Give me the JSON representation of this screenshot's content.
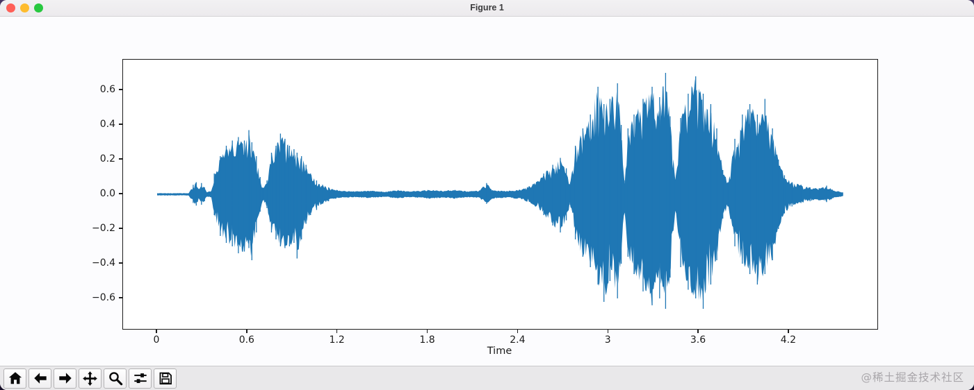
{
  "window": {
    "title": "Figure 1",
    "traffic_lights": {
      "close": "#ff5f57",
      "minimize": "#febc2e",
      "zoom": "#28c840"
    }
  },
  "watermark": {
    "text": "@稀土掘金技术社区",
    "color": "#a9a6aa"
  },
  "toolbar": {
    "buttons": [
      {
        "name": "home"
      },
      {
        "name": "back"
      },
      {
        "name": "forward"
      },
      {
        "name": "pan"
      },
      {
        "name": "zoom-to-rect"
      },
      {
        "name": "configure-subplots"
      },
      {
        "name": "save"
      }
    ]
  },
  "chart_data": {
    "type": "line",
    "title": "",
    "xlabel": "Time",
    "ylabel": "",
    "line_color": "#1f77b4",
    "grid": false,
    "legend": null,
    "xlim": [
      -0.23,
      4.79
    ],
    "ylim": [
      -0.776,
      0.776
    ],
    "xticks": [
      {
        "label": "0",
        "value": 0.0
      },
      {
        "label": "0.6",
        "value": 0.6
      },
      {
        "label": "1.2",
        "value": 1.2
      },
      {
        "label": "1.8",
        "value": 1.8
      },
      {
        "label": "2.4",
        "value": 2.4
      },
      {
        "label": "3",
        "value": 3.0
      },
      {
        "label": "3.6",
        "value": 3.6
      },
      {
        "label": "4.2",
        "value": 4.2
      }
    ],
    "yticks": [
      {
        "label": "0.6",
        "value": 0.6
      },
      {
        "label": "0.4",
        "value": 0.4
      },
      {
        "label": "0.2",
        "value": 0.2
      },
      {
        "label": "0.0",
        "value": 0.0
      },
      {
        "label": "−0.2",
        "value": -0.2
      },
      {
        "label": "−0.4",
        "value": -0.4
      },
      {
        "label": "−0.6",
        "value": -0.6
      }
    ],
    "series_name": "audio waveform amplitude vs time (s)",
    "envelope_format": [
      "time_s",
      "min_amplitude",
      "max_amplitude"
    ],
    "envelope": [
      [
        0.0,
        -0.007,
        0.007
      ],
      [
        0.21,
        -0.007,
        0.007
      ],
      [
        0.24,
        -0.05,
        0.055
      ],
      [
        0.26,
        -0.065,
        0.07
      ],
      [
        0.28,
        -0.03,
        0.03
      ],
      [
        0.295,
        -0.06,
        0.065
      ],
      [
        0.315,
        -0.04,
        0.04
      ],
      [
        0.33,
        -0.015,
        0.015
      ],
      [
        0.36,
        -0.02,
        0.02
      ],
      [
        0.38,
        -0.12,
        0.12
      ],
      [
        0.42,
        -0.24,
        0.22
      ],
      [
        0.46,
        -0.28,
        0.28
      ],
      [
        0.5,
        -0.3,
        0.31
      ],
      [
        0.54,
        -0.34,
        0.33
      ],
      [
        0.58,
        -0.33,
        0.31
      ],
      [
        0.61,
        -0.31,
        0.37
      ],
      [
        0.63,
        -0.38,
        0.3
      ],
      [
        0.66,
        -0.22,
        0.22
      ],
      [
        0.685,
        -0.1,
        0.1
      ],
      [
        0.705,
        -0.035,
        0.035
      ],
      [
        0.73,
        -0.08,
        0.08
      ],
      [
        0.76,
        -0.22,
        0.24
      ],
      [
        0.79,
        -0.26,
        0.28
      ],
      [
        0.82,
        -0.3,
        0.35
      ],
      [
        0.85,
        -0.31,
        0.32
      ],
      [
        0.88,
        -0.3,
        0.28
      ],
      [
        0.91,
        -0.28,
        0.26
      ],
      [
        0.93,
        -0.37,
        0.24
      ],
      [
        0.96,
        -0.26,
        0.22
      ],
      [
        0.99,
        -0.17,
        0.17
      ],
      [
        1.02,
        -0.12,
        0.12
      ],
      [
        1.06,
        -0.09,
        0.08
      ],
      [
        1.1,
        -0.055,
        0.055
      ],
      [
        1.14,
        -0.04,
        0.04
      ],
      [
        1.18,
        -0.028,
        0.028
      ],
      [
        1.24,
        -0.02,
        0.02
      ],
      [
        1.32,
        -0.018,
        0.018
      ],
      [
        1.42,
        -0.022,
        0.022
      ],
      [
        1.52,
        -0.016,
        0.016
      ],
      [
        1.6,
        -0.026,
        0.026
      ],
      [
        1.66,
        -0.018,
        0.018
      ],
      [
        1.74,
        -0.02,
        0.02
      ],
      [
        1.82,
        -0.028,
        0.028
      ],
      [
        1.9,
        -0.02,
        0.02
      ],
      [
        1.98,
        -0.026,
        0.028
      ],
      [
        2.06,
        -0.018,
        0.018
      ],
      [
        2.14,
        -0.022,
        0.022
      ],
      [
        2.19,
        -0.055,
        0.065
      ],
      [
        2.23,
        -0.025,
        0.025
      ],
      [
        2.32,
        -0.02,
        0.02
      ],
      [
        2.42,
        -0.028,
        0.028
      ],
      [
        2.5,
        -0.06,
        0.06
      ],
      [
        2.57,
        -0.12,
        0.12
      ],
      [
        2.63,
        -0.18,
        0.17
      ],
      [
        2.68,
        -0.22,
        0.21
      ],
      [
        2.72,
        -0.15,
        0.15
      ],
      [
        2.745,
        -0.06,
        0.06
      ],
      [
        2.78,
        -0.26,
        0.28
      ],
      [
        2.83,
        -0.36,
        0.38
      ],
      [
        2.88,
        -0.42,
        0.46
      ],
      [
        2.93,
        -0.52,
        0.62
      ],
      [
        2.97,
        -0.62,
        0.52
      ],
      [
        3.01,
        -0.5,
        0.55
      ],
      [
        3.06,
        -0.6,
        0.64
      ],
      [
        3.085,
        -0.4,
        0.4
      ],
      [
        3.105,
        -0.08,
        0.08
      ],
      [
        3.13,
        -0.36,
        0.38
      ],
      [
        3.17,
        -0.46,
        0.46
      ],
      [
        3.23,
        -0.56,
        0.55
      ],
      [
        3.29,
        -0.64,
        0.62
      ],
      [
        3.34,
        -0.6,
        0.56
      ],
      [
        3.38,
        -0.66,
        0.7
      ],
      [
        3.41,
        -0.48,
        0.45
      ],
      [
        3.445,
        -0.09,
        0.08
      ],
      [
        3.48,
        -0.42,
        0.44
      ],
      [
        3.53,
        -0.55,
        0.58
      ],
      [
        3.58,
        -0.6,
        0.68
      ],
      [
        3.63,
        -0.66,
        0.58
      ],
      [
        3.68,
        -0.52,
        0.52
      ],
      [
        3.72,
        -0.38,
        0.38
      ],
      [
        3.76,
        -0.14,
        0.14
      ],
      [
        3.795,
        -0.07,
        0.07
      ],
      [
        3.84,
        -0.3,
        0.32
      ],
      [
        3.89,
        -0.4,
        0.46
      ],
      [
        3.94,
        -0.46,
        0.52
      ],
      [
        3.99,
        -0.52,
        0.46
      ],
      [
        4.04,
        -0.46,
        0.55
      ],
      [
        4.09,
        -0.38,
        0.38
      ],
      [
        4.13,
        -0.2,
        0.2
      ],
      [
        4.17,
        -0.11,
        0.11
      ],
      [
        4.22,
        -0.07,
        0.07
      ],
      [
        4.28,
        -0.05,
        0.055
      ],
      [
        4.34,
        -0.04,
        0.04
      ],
      [
        4.4,
        -0.035,
        0.035
      ],
      [
        4.45,
        -0.045,
        0.05
      ],
      [
        4.5,
        -0.022,
        0.025
      ],
      [
        4.56,
        -0.012,
        0.012
      ]
    ]
  }
}
